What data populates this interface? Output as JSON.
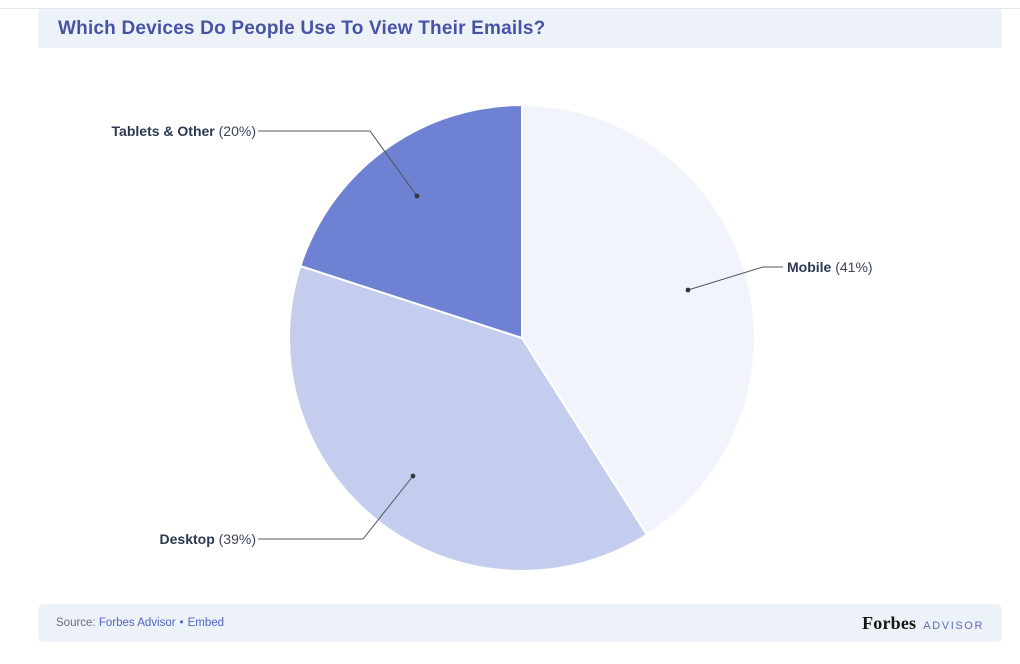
{
  "header": {
    "title": "Which Devices Do People Use To View Their Emails?"
  },
  "chart_data": {
    "type": "pie",
    "title": "Which Devices Do People Use To View Their Emails?",
    "categories": [
      "Mobile",
      "Desktop",
      "Tablets & Other"
    ],
    "values": [
      41,
      39,
      20
    ],
    "unit": "%",
    "colors": [
      "#f1f4fb",
      "#c5cdee",
      "#6e81d3"
    ],
    "start_angle": "12-o-clock",
    "direction": "clockwise",
    "legend_position": "none-leader-line-labels",
    "label_format": "Name (value%)"
  },
  "labels": {
    "tablets": {
      "name": "Tablets & Other",
      "value": "(20%)"
    },
    "mobile": {
      "name": "Mobile",
      "value": "(41%)"
    },
    "desktop": {
      "name": "Desktop",
      "value": "(39%)"
    }
  },
  "footer": {
    "source_prefix": "Source:",
    "source_link": "Forbes Advisor",
    "separator": "•",
    "embed_label": "Embed",
    "brand_name": "Forbes",
    "brand_suffix": "ADVISOR"
  },
  "colors": {
    "title_text": "#4754a6",
    "strip_background": "#edf1f8",
    "link": "#4f63c6",
    "label_bold_text": "#2c3850",
    "leader_line": "#50545d",
    "slice_mobile": "#f1f4fb",
    "slice_desktop": "#c5cdee",
    "slice_tablets": "#6e81d3"
  }
}
